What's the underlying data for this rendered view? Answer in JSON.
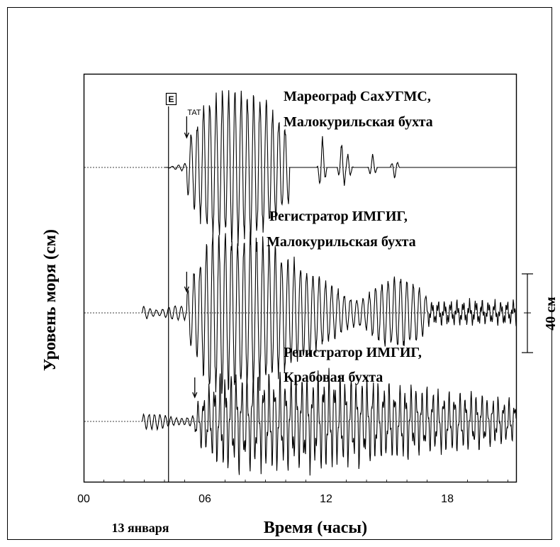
{
  "chart_data": {
    "type": "line",
    "x": [
      0,
      6,
      12,
      18
    ],
    "xlabel": "Время (часы)",
    "date_label": "13 января",
    "ylabel": "Уровень моря (см)",
    "xlim": [
      0,
      21.4
    ],
    "x_tick_labels": [
      "00",
      "06",
      "12",
      "18"
    ],
    "event_marker": {
      "label": "E",
      "x": 4.2
    },
    "scale_bar": {
      "label": "40 см",
      "value_cm": 40
    },
    "tat_label": "TAT",
    "series": [
      {
        "name": "Мареограф СахУГМС, Малокурильская бухта",
        "start": 4.0,
        "end": 21.4,
        "arrival": 5.1,
        "max_cm": 35
      },
      {
        "name": "Регистратор ИМГИГ, Малокурильская бухта",
        "start": 2.9,
        "end": 21.4,
        "arrival": 5.1,
        "max_cm": 37
      },
      {
        "name": "Регистратор ИМГИГ, Крабовая бухта",
        "start": 2.9,
        "end": 21.4,
        "arrival": 5.5,
        "max_cm": 27
      }
    ],
    "annotations": [
      {
        "lines": [
          "Мареограф  СахУГМС,",
          "Малокурильская бухта"
        ]
      },
      {
        "lines": [
          "Регистратор ИМГИГ,",
          "Малокурильская бухта"
        ]
      },
      {
        "lines": [
          "Регистратор ИМГИГ,",
          "Крабовая бухта"
        ]
      }
    ]
  }
}
